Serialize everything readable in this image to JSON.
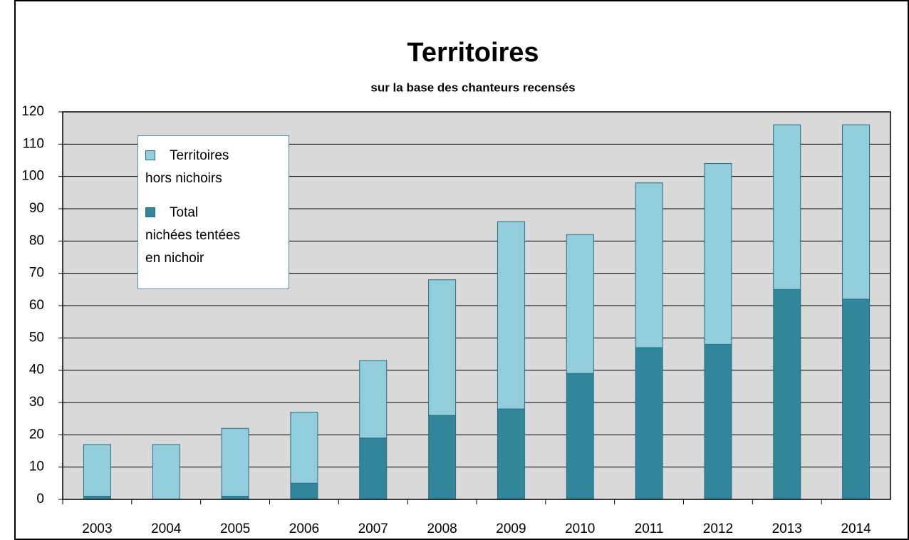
{
  "chart_data": {
    "type": "stacked_bar",
    "title": "Territoires",
    "subtitle": "sur la base des chanteurs recensés",
    "categories": [
      "2003",
      "2004",
      "2005",
      "2006",
      "2007",
      "2008",
      "2009",
      "2010",
      "2011",
      "2012",
      "2013",
      "2014"
    ],
    "series": [
      {
        "name": "Total nichées tentées en nichoir",
        "color": "#31869b",
        "values": [
          1,
          0,
          1,
          5,
          19,
          26,
          28,
          39,
          47,
          48,
          65,
          62
        ]
      },
      {
        "name": "Territoires hors nichoirs",
        "color": "#92cddc",
        "values": [
          16,
          17,
          21,
          22,
          24,
          42,
          58,
          43,
          51,
          56,
          51,
          54
        ]
      }
    ],
    "ylim": [
      0,
      120
    ],
    "yticks": [
      0,
      10,
      20,
      30,
      40,
      50,
      60,
      70,
      80,
      90,
      100,
      110,
      120
    ],
    "grid": true,
    "legend": "upper left"
  }
}
